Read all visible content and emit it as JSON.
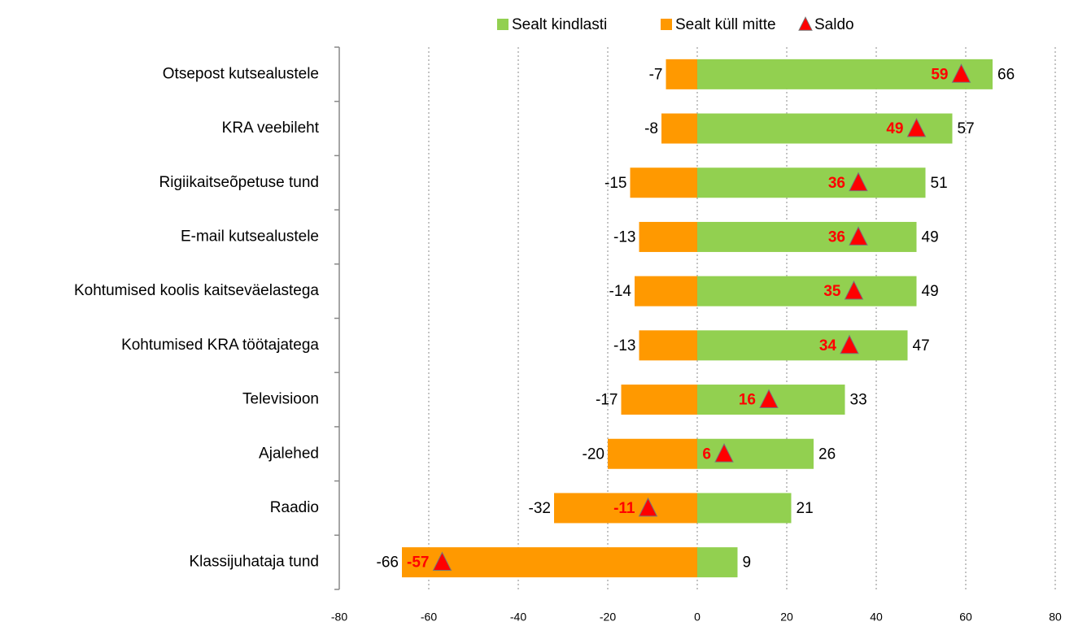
{
  "chart_data": {
    "type": "bar",
    "orientation": "horizontal",
    "categories": [
      "Otsepost kutsealustele",
      "KRA veebileht",
      "Rigiikaitseõpetuse tund",
      "E-mail kutsealustele",
      "Kohtumised koolis kaitseväelastega",
      "Kohtumised KRA töötajatega",
      "Televisioon",
      "Ajalehed",
      "Raadio",
      "Klassijuhataja tund"
    ],
    "series": [
      {
        "name": "Sealt kindlasti",
        "color": "#92d050",
        "values": [
          66,
          57,
          51,
          49,
          49,
          47,
          33,
          26,
          21,
          9
        ]
      },
      {
        "name": "Sealt küll mitte",
        "color": "#ff9900",
        "values": [
          -7,
          -8,
          -15,
          -13,
          -14,
          -13,
          -17,
          -20,
          -32,
          -66
        ]
      },
      {
        "name": "Saldo",
        "type": "marker",
        "color": "#ff0000",
        "values": [
          59,
          49,
          36,
          36,
          35,
          34,
          16,
          6,
          -11,
          -57
        ]
      }
    ],
    "xlim": [
      -80,
      80
    ],
    "xticks": [
      -80,
      -60,
      -40,
      -20,
      0,
      20,
      40,
      60,
      80
    ],
    "grid": true,
    "legend": "top"
  }
}
